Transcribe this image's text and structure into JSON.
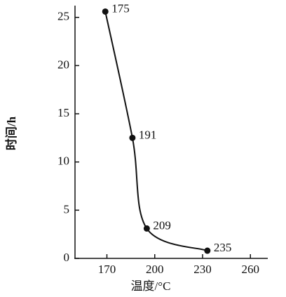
{
  "chart_data": {
    "type": "line",
    "x": [
      169,
      186,
      195,
      233
    ],
    "series": [
      {
        "color": "#111111",
        "values": [
          25.6,
          12.5,
          3.1,
          0.8
        ]
      }
    ],
    "point_labels": [
      "175",
      "191",
      "209",
      "235"
    ],
    "xlabel": "温度/°C",
    "ylabel": "时间/h",
    "xlim": [
      150,
      270
    ],
    "xticks": [
      170,
      200,
      230,
      260
    ],
    "ylim": [
      0,
      26
    ],
    "yticks": [
      0,
      5,
      10,
      15,
      20,
      25
    ],
    "grid": false
  }
}
